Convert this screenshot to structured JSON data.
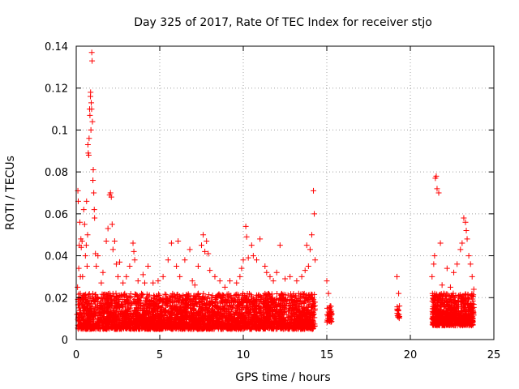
{
  "chart_data": {
    "type": "scatter",
    "title": "Day 325 of 2017, Rate Of TEC Index for receiver stjo",
    "xlabel": "GPS time / hours",
    "ylabel": "ROTI / TECUs",
    "xlim": [
      0,
      25
    ],
    "ylim": [
      0,
      0.14
    ],
    "x_ticks": [
      {
        "value": 0,
        "label": "0"
      },
      {
        "value": 5,
        "label": "5"
      },
      {
        "value": 10,
        "label": "10"
      },
      {
        "value": 15,
        "label": "15"
      },
      {
        "value": 20,
        "label": "20"
      },
      {
        "value": 25,
        "label": "25"
      }
    ],
    "y_ticks": [
      {
        "value": 0,
        "label": "0"
      },
      {
        "value": 0.02,
        "label": "0.02"
      },
      {
        "value": 0.04,
        "label": "0.04"
      },
      {
        "value": 0.06,
        "label": "0.06"
      },
      {
        "value": 0.08,
        "label": "0.08"
      },
      {
        "value": 0.1,
        "label": "0.1"
      },
      {
        "value": 0.12,
        "label": "0.12"
      },
      {
        "value": 0.14,
        "label": "0.14"
      }
    ],
    "grid": true,
    "marker": "+",
    "series": [
      {
        "name": "stjo",
        "color": "#ff0000",
        "points": [
          [
            0.05,
            0.012
          ],
          [
            0.08,
            0.025
          ],
          [
            0.1,
            0.071
          ],
          [
            0.12,
            0.066
          ],
          [
            0.15,
            0.034
          ],
          [
            0.18,
            0.045
          ],
          [
            0.2,
            0.018
          ],
          [
            0.22,
            0.056
          ],
          [
            0.25,
            0.03
          ],
          [
            0.28,
            0.048
          ],
          [
            0.3,
            0.044
          ],
          [
            0.33,
            0.02
          ],
          [
            0.35,
            0.047
          ],
          [
            0.38,
            0.03
          ],
          [
            0.4,
            0.015
          ],
          [
            0.45,
            0.062
          ],
          [
            0.5,
            0.055
          ],
          [
            0.55,
            0.04
          ],
          [
            0.6,
            0.045
          ],
          [
            0.62,
            0.066
          ],
          [
            0.65,
            0.035
          ],
          [
            0.68,
            0.05
          ],
          [
            0.7,
            0.093
          ],
          [
            0.72,
            0.089
          ],
          [
            0.75,
            0.088
          ],
          [
            0.77,
            0.096
          ],
          [
            0.8,
            0.11
          ],
          [
            0.82,
            0.107
          ],
          [
            0.85,
            0.116
          ],
          [
            0.86,
            0.118
          ],
          [
            0.88,
            0.1
          ],
          [
            0.9,
            0.113
          ],
          [
            0.92,
            0.11
          ],
          [
            0.93,
            0.137
          ],
          [
            0.95,
            0.133
          ],
          [
            0.97,
            0.104
          ],
          [
            1.0,
            0.076
          ],
          [
            1.02,
            0.081
          ],
          [
            1.05,
            0.07
          ],
          [
            1.08,
            0.062
          ],
          [
            1.1,
            0.058
          ],
          [
            1.15,
            0.041
          ],
          [
            1.2,
            0.035
          ],
          [
            1.3,
            0.04
          ],
          [
            1.5,
            0.027
          ],
          [
            1.6,
            0.032
          ],
          [
            1.8,
            0.047
          ],
          [
            1.9,
            0.053
          ],
          [
            2.0,
            0.069
          ],
          [
            2.05,
            0.07
          ],
          [
            2.1,
            0.068
          ],
          [
            2.15,
            0.055
          ],
          [
            2.2,
            0.043
          ],
          [
            2.3,
            0.047
          ],
          [
            2.4,
            0.036
          ],
          [
            2.5,
            0.03
          ],
          [
            2.6,
            0.037
          ],
          [
            2.8,
            0.027
          ],
          [
            3.0,
            0.03
          ],
          [
            3.2,
            0.035
          ],
          [
            3.4,
            0.046
          ],
          [
            3.45,
            0.042
          ],
          [
            3.5,
            0.038
          ],
          [
            3.7,
            0.028
          ],
          [
            4.0,
            0.031
          ],
          [
            4.1,
            0.027
          ],
          [
            4.3,
            0.035
          ],
          [
            4.6,
            0.027
          ],
          [
            4.9,
            0.028
          ],
          [
            5.2,
            0.03
          ],
          [
            5.5,
            0.038
          ],
          [
            5.7,
            0.046
          ],
          [
            6.0,
            0.035
          ],
          [
            6.1,
            0.047
          ],
          [
            6.2,
            0.03
          ],
          [
            6.5,
            0.038
          ],
          [
            6.8,
            0.043
          ],
          [
            6.95,
            0.028
          ],
          [
            7.1,
            0.026
          ],
          [
            7.3,
            0.035
          ],
          [
            7.5,
            0.045
          ],
          [
            7.6,
            0.05
          ],
          [
            7.7,
            0.042
          ],
          [
            7.8,
            0.047
          ],
          [
            7.9,
            0.041
          ],
          [
            8.0,
            0.033
          ],
          [
            8.3,
            0.03
          ],
          [
            8.6,
            0.028
          ],
          [
            8.9,
            0.025
          ],
          [
            9.2,
            0.028
          ],
          [
            9.6,
            0.027
          ],
          [
            9.8,
            0.03
          ],
          [
            9.9,
            0.034
          ],
          [
            10.0,
            0.038
          ],
          [
            10.15,
            0.054
          ],
          [
            10.2,
            0.049
          ],
          [
            10.3,
            0.039
          ],
          [
            10.5,
            0.045
          ],
          [
            10.6,
            0.04
          ],
          [
            10.8,
            0.038
          ],
          [
            11.0,
            0.048
          ],
          [
            11.3,
            0.035
          ],
          [
            11.4,
            0.032
          ],
          [
            11.6,
            0.03
          ],
          [
            11.8,
            0.028
          ],
          [
            12.0,
            0.032
          ],
          [
            12.2,
            0.045
          ],
          [
            12.5,
            0.029
          ],
          [
            12.8,
            0.03
          ],
          [
            13.2,
            0.028
          ],
          [
            13.5,
            0.03
          ],
          [
            13.7,
            0.033
          ],
          [
            13.8,
            0.045
          ],
          [
            13.9,
            0.035
          ],
          [
            14.0,
            0.043
          ],
          [
            14.1,
            0.05
          ],
          [
            14.2,
            0.071
          ],
          [
            14.25,
            0.06
          ],
          [
            14.3,
            0.038
          ],
          [
            15.0,
            0.028
          ],
          [
            15.1,
            0.022
          ],
          [
            15.2,
            0.016
          ],
          [
            15.3,
            0.012
          ],
          [
            19.2,
            0.03
          ],
          [
            19.3,
            0.022
          ],
          [
            19.35,
            0.016
          ],
          [
            21.3,
            0.03
          ],
          [
            21.4,
            0.036
          ],
          [
            21.45,
            0.04
          ],
          [
            21.5,
            0.077
          ],
          [
            21.55,
            0.078
          ],
          [
            21.6,
            0.072
          ],
          [
            21.7,
            0.07
          ],
          [
            21.8,
            0.046
          ],
          [
            21.9,
            0.026
          ],
          [
            22.0,
            0.022
          ],
          [
            22.2,
            0.034
          ],
          [
            22.4,
            0.025
          ],
          [
            22.6,
            0.032
          ],
          [
            22.8,
            0.036
          ],
          [
            23.0,
            0.043
          ],
          [
            23.1,
            0.046
          ],
          [
            23.2,
            0.058
          ],
          [
            23.3,
            0.056
          ],
          [
            23.35,
            0.052
          ],
          [
            23.4,
            0.048
          ],
          [
            23.5,
            0.04
          ],
          [
            23.6,
            0.036
          ],
          [
            23.7,
            0.03
          ],
          [
            23.8,
            0.024
          ]
        ],
        "dense_band": {
          "segments": [
            {
              "x_range": [
                0.1,
                14.3
              ],
              "y_range": [
                0.002,
                0.022
              ],
              "count": 3600
            },
            {
              "x_range": [
                15.0,
                15.3
              ],
              "y_range": [
                0.007,
                0.016
              ],
              "count": 40
            },
            {
              "x_range": [
                19.2,
                19.35
              ],
              "y_range": [
                0.009,
                0.016
              ],
              "count": 15
            },
            {
              "x_range": [
                21.3,
                23.8
              ],
              "y_range": [
                0.004,
                0.022
              ],
              "count": 700
            }
          ]
        }
      }
    ]
  }
}
